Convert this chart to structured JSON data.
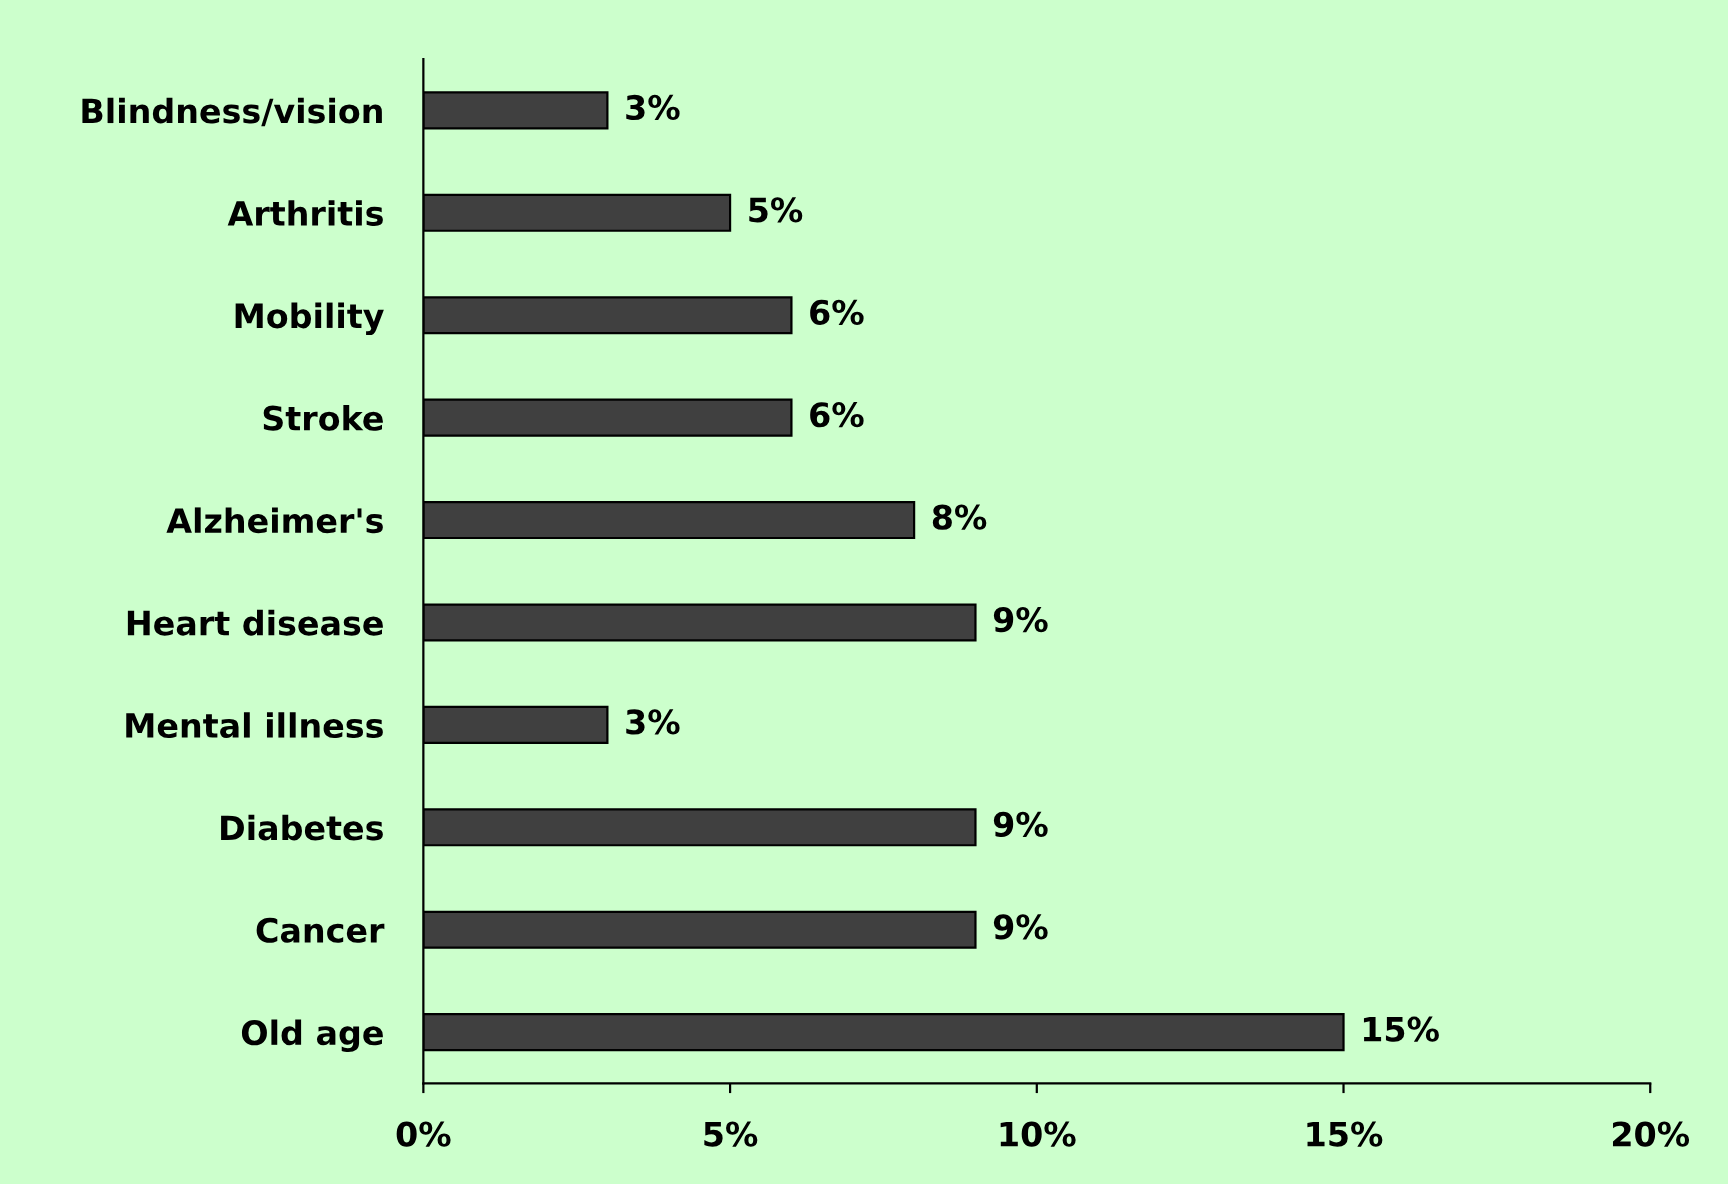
{
  "chart_data": {
    "type": "bar",
    "orientation": "horizontal",
    "categories": [
      "Blindness/vision",
      "Arthritis",
      "Mobility",
      "Stroke",
      "Alzheimer's",
      "Heart disease",
      "Mental illness",
      "Diabetes",
      "Cancer",
      "Old age"
    ],
    "values": [
      3,
      5,
      6,
      6,
      8,
      9,
      3,
      9,
      9,
      15
    ],
    "value_labels": [
      "3%",
      "5%",
      "6%",
      "6%",
      "8%",
      "9%",
      "3%",
      "9%",
      "9%",
      "15%"
    ],
    "color": "#404040",
    "xlim": [
      0,
      20
    ],
    "xticks": [
      {
        "value": 0,
        "label": "0%"
      },
      {
        "value": 5,
        "label": "5%"
      },
      {
        "value": 10,
        "label": "10%"
      },
      {
        "value": 15,
        "label": "15%"
      },
      {
        "value": 20,
        "label": "20%"
      }
    ],
    "grid": false
  }
}
